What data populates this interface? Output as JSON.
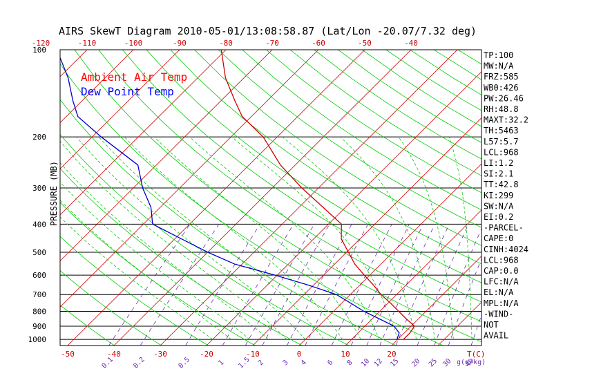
{
  "chart_data": {
    "type": "line",
    "title": "AIRS SkewT Diagram 2010-05-01/13:08:58.87 (Lat/Lon -20.07/7.32 deg)",
    "ylabel": "PRESSURE (MB)",
    "y_scale": "log",
    "ylim": [
      1050,
      100
    ],
    "pressure_ticks": [
      "100",
      "200",
      "300",
      "400",
      "500",
      "600",
      "700",
      "800",
      "900",
      "1000"
    ],
    "top_temp_ticks": [
      "-120",
      "-110",
      "-100",
      "-90",
      "-80",
      "-70",
      "-60",
      "-50",
      "-40"
    ],
    "bottom_temp_ticks": [
      "-50",
      "-40",
      "-30",
      "-20",
      "-10",
      "0",
      "10",
      "20"
    ],
    "bottom_unit": "T(C)",
    "mixing_ratio_ticks": [
      "0.1",
      "0.2",
      "0.5",
      "1",
      "1.5",
      "2",
      "3",
      "4",
      "6",
      "8",
      "10",
      "12",
      "15",
      "20",
      "25",
      "30",
      "40"
    ],
    "mixing_unit": "g(g/kg)",
    "legend": [
      {
        "label": "Ambient Air Temp",
        "color": "#ff0000"
      },
      {
        "label": "Dew Point Temp",
        "color": "#0000ff"
      }
    ],
    "series": [
      {
        "name": "Ambient Air Temp",
        "color": "#cc0000",
        "pressure": [
          1000,
          950,
          900,
          850,
          800,
          750,
          700,
          650,
          600,
          550,
          500,
          450,
          400,
          350,
          300,
          250,
          200,
          170,
          150,
          125,
          100
        ],
        "temp": [
          21.2,
          21.2,
          20.7,
          17.4,
          14.1,
          10.6,
          6.6,
          3.0,
          -1.2,
          -5.6,
          -9.6,
          -14.0,
          -17.2,
          -24.8,
          -33.6,
          -43.2,
          -53.0,
          -62.0,
          -67.0,
          -74.0,
          -81.0
        ]
      },
      {
        "name": "Dew Point Temp",
        "color": "#0000cc",
        "pressure": [
          1000,
          950,
          900,
          850,
          800,
          750,
          700,
          650,
          600,
          550,
          500,
          450,
          400,
          350,
          300,
          250,
          200,
          170,
          150,
          125,
          100
        ],
        "temp": [
          19.8,
          18.9,
          16.3,
          11.6,
          6.6,
          2.0,
          -3.0,
          -11.0,
          -20.5,
          -31.5,
          -40.0,
          -48.5,
          -58.0,
          -62.0,
          -68.0,
          -74.0,
          -88.0,
          -97.5,
          -102.0,
          -108.0,
          -116.5
        ]
      }
    ],
    "indices": [
      "TP:100",
      "MW:N/A",
      "FRZ:585",
      "WB0:426",
      "PW:26.46",
      "RH:48.8",
      "MAXT:32.2",
      "TH:5463",
      "L57:5.7",
      "LCL:968",
      "LI:1.2",
      "SI:2.1",
      "TT:42.8",
      "KI:299",
      "SW:N/A",
      "EI:0.2",
      "-PARCEL-",
      "CAPE:0",
      "CINH:4024",
      "LCL:968",
      "CAP:0.0",
      "LFC:N/A",
      "EL:N/A",
      "MPL:N/A",
      "-WIND-",
      "NOT",
      "AVAIL"
    ],
    "colors": {
      "isotherm": "#cc0000",
      "dry_adiabat": "#00cc00",
      "moist_adiabat": "#00cc00",
      "mixing_ratio": "#6a2ab0",
      "isobar": "#000000"
    }
  }
}
